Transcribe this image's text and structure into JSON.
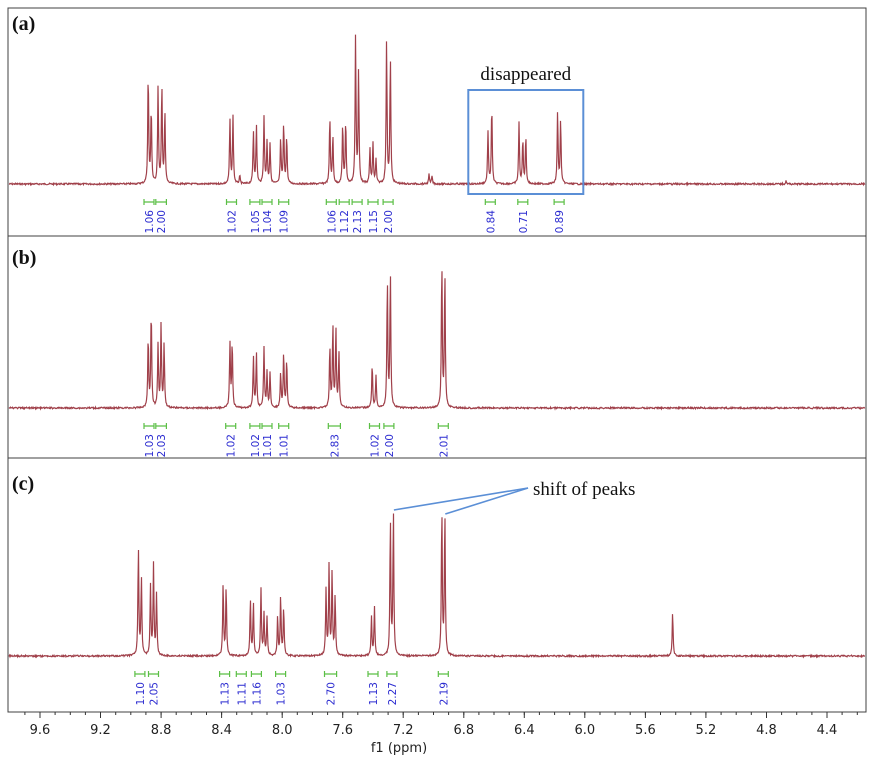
{
  "chart_data": {
    "type": "line",
    "xlabel": "f1 (ppm)",
    "x_reversed": true,
    "xlim": [
      9.8,
      4.1
    ],
    "xticks": [
      "9.6",
      "9.2",
      "8.8",
      "8.4",
      "8.0",
      "7.6",
      "7.2",
      "6.8",
      "6.4",
      "6.0",
      "5.6",
      "5.2",
      "4.8",
      "4.4"
    ],
    "panels": [
      {
        "label": "(a)",
        "peaks": [
          {
            "ppm": 8.885,
            "h": 0.7
          },
          {
            "ppm": 8.865,
            "h": 0.48
          },
          {
            "ppm": 8.82,
            "h": 0.6
          },
          {
            "ppm": 8.795,
            "h": 0.62
          },
          {
            "ppm": 8.775,
            "h": 0.45
          },
          {
            "ppm": 8.345,
            "h": 0.4
          },
          {
            "ppm": 8.325,
            "h": 0.42
          },
          {
            "ppm": 8.28,
            "h": 0.05
          },
          {
            "ppm": 8.19,
            "h": 0.33
          },
          {
            "ppm": 8.17,
            "h": 0.36
          },
          {
            "ppm": 8.12,
            "h": 0.42
          },
          {
            "ppm": 8.1,
            "h": 0.26
          },
          {
            "ppm": 8.08,
            "h": 0.25
          },
          {
            "ppm": 8.01,
            "h": 0.28
          },
          {
            "ppm": 7.99,
            "h": 0.38
          },
          {
            "ppm": 7.97,
            "h": 0.3
          },
          {
            "ppm": 7.685,
            "h": 0.42
          },
          {
            "ppm": 7.665,
            "h": 0.3
          },
          {
            "ppm": 7.6,
            "h": 0.38
          },
          {
            "ppm": 7.58,
            "h": 0.4
          },
          {
            "ppm": 7.515,
            "h": 0.92
          },
          {
            "ppm": 7.495,
            "h": 0.7
          },
          {
            "ppm": 7.42,
            "h": 0.22
          },
          {
            "ppm": 7.4,
            "h": 0.25
          },
          {
            "ppm": 7.38,
            "h": 0.15
          },
          {
            "ppm": 7.31,
            "h": 0.9
          },
          {
            "ppm": 7.285,
            "h": 0.8
          },
          {
            "ppm": 7.03,
            "h": 0.06
          },
          {
            "ppm": 7.01,
            "h": 0.05
          },
          {
            "ppm": 6.64,
            "h": 0.33
          },
          {
            "ppm": 6.615,
            "h": 0.5
          },
          {
            "ppm": 6.435,
            "h": 0.38
          },
          {
            "ppm": 6.41,
            "h": 0.28
          },
          {
            "ppm": 6.39,
            "h": 0.3
          },
          {
            "ppm": 6.18,
            "h": 0.45
          },
          {
            "ppm": 6.16,
            "h": 0.4
          },
          {
            "ppm": 4.67,
            "h": 0.02
          }
        ],
        "integrals": [
          {
            "ppm": 8.88,
            "w": 0.04,
            "value": "1.06"
          },
          {
            "ppm": 8.8,
            "w": 0.07,
            "value": "2.00"
          },
          {
            "ppm": 8.335,
            "w": 0.05,
            "value": "1.02"
          },
          {
            "ppm": 8.18,
            "w": 0.04,
            "value": "1.05"
          },
          {
            "ppm": 8.1,
            "w": 0.05,
            "value": "1.04"
          },
          {
            "ppm": 7.99,
            "w": 0.05,
            "value": "1.09"
          },
          {
            "ppm": 7.675,
            "w": 0.04,
            "value": "1.06"
          },
          {
            "ppm": 7.59,
            "w": 0.04,
            "value": "1.12"
          },
          {
            "ppm": 7.505,
            "w": 0.04,
            "value": "2.13"
          },
          {
            "ppm": 7.4,
            "w": 0.05,
            "value": "1.15"
          },
          {
            "ppm": 7.3,
            "w": 0.05,
            "value": "2.00"
          },
          {
            "ppm": 6.625,
            "w": 0.05,
            "value": "0.84"
          },
          {
            "ppm": 6.41,
            "w": 0.06,
            "value": "0.71"
          },
          {
            "ppm": 6.17,
            "w": 0.05,
            "value": "0.89"
          }
        ],
        "annotation": {
          "text": "disappeared",
          "ppm_from": 6.77,
          "ppm_to": 6.01
        }
      },
      {
        "label": "(b)",
        "peaks": [
          {
            "ppm": 8.885,
            "h": 0.45
          },
          {
            "ppm": 8.865,
            "h": 0.62
          },
          {
            "ppm": 8.82,
            "h": 0.4
          },
          {
            "ppm": 8.8,
            "h": 0.52
          },
          {
            "ppm": 8.78,
            "h": 0.4
          },
          {
            "ppm": 8.345,
            "h": 0.4
          },
          {
            "ppm": 8.33,
            "h": 0.42
          },
          {
            "ppm": 8.19,
            "h": 0.32
          },
          {
            "ppm": 8.17,
            "h": 0.34
          },
          {
            "ppm": 8.12,
            "h": 0.38
          },
          {
            "ppm": 8.1,
            "h": 0.22
          },
          {
            "ppm": 8.08,
            "h": 0.22
          },
          {
            "ppm": 8.01,
            "h": 0.22
          },
          {
            "ppm": 7.99,
            "h": 0.35
          },
          {
            "ppm": 7.97,
            "h": 0.3
          },
          {
            "ppm": 7.685,
            "h": 0.38
          },
          {
            "ppm": 7.665,
            "h": 0.52
          },
          {
            "ppm": 7.645,
            "h": 0.5
          },
          {
            "ppm": 7.625,
            "h": 0.35
          },
          {
            "ppm": 7.405,
            "h": 0.28
          },
          {
            "ppm": 7.38,
            "h": 0.2
          },
          {
            "ppm": 7.305,
            "h": 0.8
          },
          {
            "ppm": 7.285,
            "h": 0.85
          },
          {
            "ppm": 6.945,
            "h": 0.92
          },
          {
            "ppm": 6.925,
            "h": 0.85
          }
        ],
        "integrals": [
          {
            "ppm": 8.88,
            "w": 0.04,
            "value": "1.03"
          },
          {
            "ppm": 8.8,
            "w": 0.07,
            "value": "2.03"
          },
          {
            "ppm": 8.34,
            "w": 0.05,
            "value": "1.02"
          },
          {
            "ppm": 8.18,
            "w": 0.04,
            "value": "1.02"
          },
          {
            "ppm": 8.1,
            "w": 0.04,
            "value": "1.01"
          },
          {
            "ppm": 7.99,
            "w": 0.05,
            "value": "1.01"
          },
          {
            "ppm": 7.655,
            "w": 0.08,
            "value": "2.83"
          },
          {
            "ppm": 7.39,
            "w": 0.05,
            "value": "1.02"
          },
          {
            "ppm": 7.295,
            "w": 0.05,
            "value": "2.00"
          },
          {
            "ppm": 6.935,
            "w": 0.05,
            "value": "2.01"
          }
        ]
      },
      {
        "label": "(c)",
        "peaks": [
          {
            "ppm": 8.95,
            "h": 0.62
          },
          {
            "ppm": 8.93,
            "h": 0.45
          },
          {
            "ppm": 8.87,
            "h": 0.4
          },
          {
            "ppm": 8.85,
            "h": 0.52
          },
          {
            "ppm": 8.83,
            "h": 0.35
          },
          {
            "ppm": 8.39,
            "h": 0.42
          },
          {
            "ppm": 8.37,
            "h": 0.4
          },
          {
            "ppm": 8.21,
            "h": 0.32
          },
          {
            "ppm": 8.19,
            "h": 0.3
          },
          {
            "ppm": 8.14,
            "h": 0.38
          },
          {
            "ppm": 8.12,
            "h": 0.24
          },
          {
            "ppm": 8.1,
            "h": 0.22
          },
          {
            "ppm": 8.03,
            "h": 0.22
          },
          {
            "ppm": 8.01,
            "h": 0.34
          },
          {
            "ppm": 7.99,
            "h": 0.28
          },
          {
            "ppm": 7.71,
            "h": 0.38
          },
          {
            "ppm": 7.69,
            "h": 0.52
          },
          {
            "ppm": 7.67,
            "h": 0.48
          },
          {
            "ppm": 7.65,
            "h": 0.35
          },
          {
            "ppm": 7.41,
            "h": 0.22
          },
          {
            "ppm": 7.39,
            "h": 0.28
          },
          {
            "ppm": 7.285,
            "h": 0.78
          },
          {
            "ppm": 7.265,
            "h": 0.82
          },
          {
            "ppm": 6.945,
            "h": 0.85
          },
          {
            "ppm": 6.925,
            "h": 0.82
          },
          {
            "ppm": 5.42,
            "h": 0.25
          }
        ],
        "integrals": [
          {
            "ppm": 8.94,
            "w": 0.04,
            "value": "1.10"
          },
          {
            "ppm": 8.85,
            "w": 0.06,
            "value": "2.05"
          },
          {
            "ppm": 8.38,
            "w": 0.04,
            "value": "1.13"
          },
          {
            "ppm": 8.27,
            "w": 0.04,
            "value": "1.11"
          },
          {
            "ppm": 8.17,
            "w": 0.04,
            "value": "1.16"
          },
          {
            "ppm": 8.01,
            "w": 0.05,
            "value": "1.03"
          },
          {
            "ppm": 7.68,
            "w": 0.08,
            "value": "2.70"
          },
          {
            "ppm": 7.4,
            "w": 0.05,
            "value": "1.13"
          },
          {
            "ppm": 7.275,
            "w": 0.05,
            "value": "2.27"
          },
          {
            "ppm": 6.935,
            "w": 0.05,
            "value": "2.19"
          }
        ],
        "annotation": {
          "text": "shift of peaks",
          "targets_ppm": [
            7.275,
            6.935
          ]
        }
      }
    ]
  }
}
